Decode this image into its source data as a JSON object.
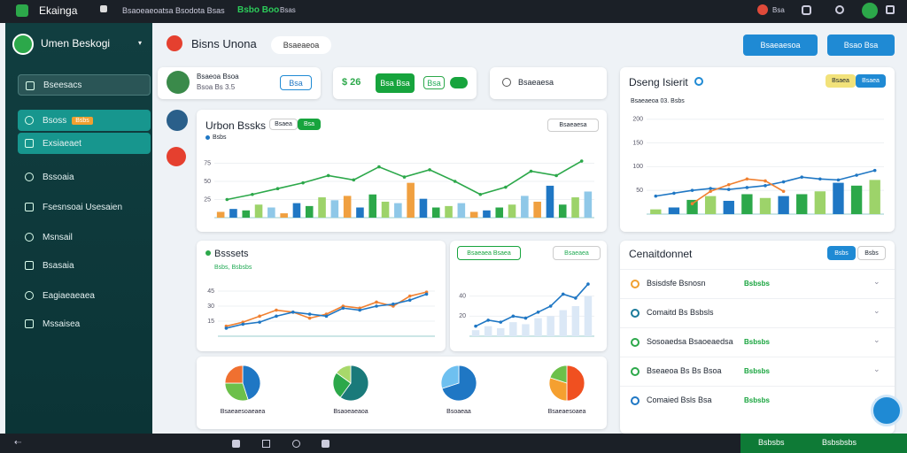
{
  "topbar": {
    "app": "Ekainga",
    "crumb": "Bsaoeaeoatsa Bsodota Bsas",
    "badge": "Bsbo Boo",
    "badge2": "Bsas",
    "user": "Bsa"
  },
  "sidebar": {
    "profile": "Umen Beskogi",
    "tag": "Bsbs",
    "menu": [
      "Bseesacs",
      "Bsoss",
      "Exsiaeaet",
      "Bssoaia",
      "Fsesnsoai Usesaien",
      "Msnsail",
      "Bsasaia",
      "Eagiaeaeaea",
      "Mssaisea"
    ]
  },
  "header": {
    "title": "Bisns Unona",
    "pill": "Bsaeaeoa",
    "button1": "Bsaeaesoa",
    "button2": "Bsao Bsa"
  },
  "cards": {
    "profile_name": "Bsaeoa Bsoa",
    "profile_sub": "Bsoa Bs 3.5",
    "select": "Bsa",
    "amount": "$ 26",
    "amount_btn": "Bsa Bsa",
    "toggle": "Bsa",
    "search": "Bsaeaesa"
  },
  "main_chart": {
    "title": "Urbon Bssks",
    "tab1": "Bsaea",
    "tab2": "Bsa",
    "dropdown": "Bsaeaesa",
    "legend": "Bsbs",
    "ylim": [
      0,
      100
    ],
    "yticks": [
      25,
      50,
      75
    ],
    "bar_colors": [
      "#f0a040",
      "#1f77c4",
      "#2ca84a",
      "#9dd36a",
      "#8fc8e8"
    ],
    "bars": [
      8,
      12,
      10,
      18,
      14,
      6,
      20,
      16,
      28,
      24,
      30,
      14,
      32,
      22,
      20,
      48,
      26,
      14,
      16,
      20,
      8,
      10,
      14,
      18,
      30,
      22,
      44,
      18,
      28,
      36
    ],
    "lines": [
      {
        "color": "#2ca84a",
        "values": [
          25,
          32,
          40,
          48,
          58,
          52,
          70,
          56,
          66,
          50,
          32,
          42,
          64,
          58,
          78
        ]
      }
    ]
  },
  "right_chart": {
    "title": "Dseng Isierit",
    "subtitle": "Bsaeaeoa 03. Bsbs",
    "tab1": "Bsaea",
    "tab2": "Bsaea",
    "ylim": [
      0,
      220
    ],
    "yticks": [
      50,
      100,
      150,
      200
    ],
    "bar_colors": [
      "#9dd36a",
      "#1f77c4",
      "#2ca84a"
    ],
    "bars": [
      10,
      14,
      30,
      38,
      28,
      42,
      34,
      38,
      42,
      48,
      66,
      60,
      72
    ],
    "lines": [
      {
        "color": "#1f77c4",
        "values": [
          38,
          44,
          50,
          54,
          52,
          56,
          60,
          68,
          78,
          74,
          72,
          82,
          92
        ]
      },
      {
        "color": "#f08030",
        "values": [
          null,
          null,
          22,
          48,
          62,
          74,
          70,
          48,
          null,
          null,
          null,
          null,
          null
        ]
      }
    ]
  },
  "assets_chart": {
    "title": "Bsssets",
    "subtitle": "Bsbs, Bsbsbs",
    "ylim": [
      0,
      60
    ],
    "yticks": [
      15,
      30,
      45
    ],
    "lines": [
      {
        "color": "#f08030",
        "values": [
          10,
          14,
          20,
          26,
          24,
          18,
          22,
          30,
          28,
          34,
          30,
          40,
          44
        ]
      },
      {
        "color": "#1f77c4",
        "values": [
          8,
          12,
          14,
          20,
          24,
          22,
          20,
          28,
          26,
          30,
          32,
          36,
          42
        ]
      }
    ]
  },
  "small_chart": {
    "badge": "Bsaeaea Bsaea",
    "badge2": "Bsaeaea",
    "ylim": [
      0,
      60
    ],
    "yticks": [
      20,
      40
    ],
    "bar_colors": [
      "#dbe8f6"
    ],
    "bars": [
      6,
      10,
      8,
      14,
      12,
      18,
      20,
      26,
      30,
      40
    ],
    "lines": [
      {
        "color": "#1f77c4",
        "values": [
          10,
          16,
          14,
          20,
          18,
          24,
          30,
          42,
          38,
          52
        ]
      }
    ]
  },
  "pies": [
    {
      "label": "Bsaeaesoaeaea",
      "values": [
        45,
        30,
        25
      ],
      "colors": [
        "#1f77c4",
        "#6cc04a",
        "#f07030"
      ]
    },
    {
      "label": "Bsaoeaeaoa",
      "values": [
        60,
        25,
        15
      ],
      "colors": [
        "#1a7a7a",
        "#2ca84a",
        "#a8d86a"
      ]
    },
    {
      "label": "Bsoaeaa",
      "values": [
        70,
        30
      ],
      "colors": [
        "#1f77c4",
        "#6ec0f0"
      ]
    },
    {
      "label": "Bsaeaesoaea",
      "values": [
        50,
        30,
        20
      ],
      "colors": [
        "#f05020",
        "#f5a030",
        "#6cc04a"
      ]
    }
  ],
  "list": {
    "title": "Cenaitdonnet",
    "tab1": "Bsbs",
    "tab2": "Bsbs",
    "rows": [
      {
        "label": "Bsisdsfe Bsnosn",
        "value": "Bsbsbs",
        "color": "#f0a030"
      },
      {
        "label": "Comaitd Bs Bsbsls",
        "value": "",
        "color": "#1a7a9a"
      },
      {
        "label": "Sosoaedsa Bsaoeaedsa",
        "value": "Bsbsbs",
        "color": "#2ca84a"
      },
      {
        "label": "Bseaeoa Bs Bs Bsoa",
        "value": "Bsbsbs",
        "color": "#2ca84a"
      },
      {
        "label": "Comaied Bsls Bsa",
        "value": "Bsbsbs",
        "color": "#1f77c4"
      }
    ]
  },
  "footer": {
    "status": "Bsbsbs",
    "status2": "Bsbsbsbs"
  }
}
